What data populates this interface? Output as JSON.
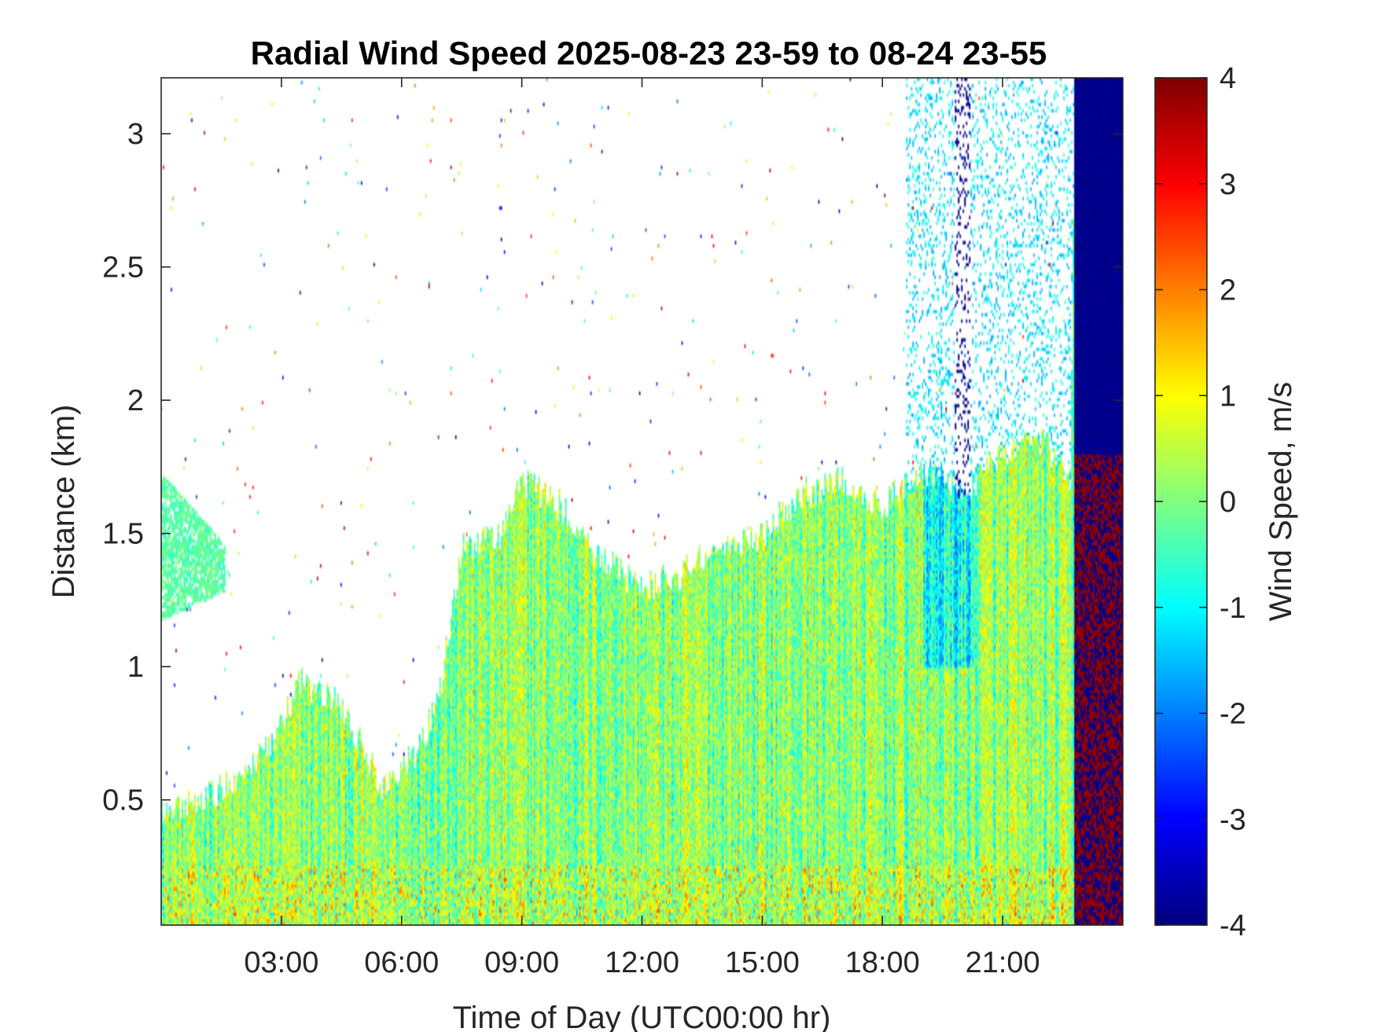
{
  "chart_data": {
    "type": "heatmap",
    "title": "Radial Wind Speed 2025-08-23 23-59 to 08-24 23-55",
    "xlabel": "Time of Day (UTC00:00 hr)",
    "ylabel": "Distance (km)",
    "colorbar_label": "Wind Speed, m/s",
    "colormap": "jet",
    "xlim_hours": [
      0,
      24
    ],
    "ylim_km": [
      0.03,
      3.21
    ],
    "clim": [
      -4,
      4
    ],
    "grid": false,
    "x_ticks": [
      {
        "value": 3,
        "label": "03:00"
      },
      {
        "value": 6,
        "label": "06:00"
      },
      {
        "value": 9,
        "label": "09:00"
      },
      {
        "value": 12,
        "label": "12:00"
      },
      {
        "value": 15,
        "label": "15:00"
      },
      {
        "value": 18,
        "label": "18:00"
      },
      {
        "value": 21,
        "label": "21:00"
      }
    ],
    "y_ticks": [
      {
        "value": 0.5,
        "label": "0.5"
      },
      {
        "value": 1,
        "label": "1"
      },
      {
        "value": 1.5,
        "label": "1.5"
      },
      {
        "value": 2,
        "label": "2"
      },
      {
        "value": 2.5,
        "label": "2.5"
      },
      {
        "value": 3,
        "label": "3"
      }
    ],
    "colorbar_ticks": [
      {
        "value": 4,
        "label": "4"
      },
      {
        "value": 3,
        "label": "3"
      },
      {
        "value": 2,
        "label": "2"
      },
      {
        "value": 1,
        "label": "1"
      },
      {
        "value": 0,
        "label": "0"
      },
      {
        "value": -1,
        "label": "-1"
      },
      {
        "value": -2,
        "label": "-2"
      },
      {
        "value": -3,
        "label": "-3"
      },
      {
        "value": -4,
        "label": "-4"
      }
    ],
    "valid_data_top_km": [
      {
        "time": 0.0,
        "top": 0.45
      },
      {
        "time": 1.0,
        "top": 0.5
      },
      {
        "time": 2.0,
        "top": 0.6
      },
      {
        "time": 3.0,
        "top": 0.78
      },
      {
        "time": 3.5,
        "top": 0.95
      },
      {
        "time": 4.5,
        "top": 0.85
      },
      {
        "time": 5.5,
        "top": 0.55
      },
      {
        "time": 6.5,
        "top": 0.7
      },
      {
        "time": 7.0,
        "top": 0.95
      },
      {
        "time": 7.5,
        "top": 1.45
      },
      {
        "time": 8.5,
        "top": 1.5
      },
      {
        "time": 9.0,
        "top": 1.7
      },
      {
        "time": 10.0,
        "top": 1.6
      },
      {
        "time": 11.0,
        "top": 1.4
      },
      {
        "time": 12.0,
        "top": 1.3
      },
      {
        "time": 13.0,
        "top": 1.35
      },
      {
        "time": 14.0,
        "top": 1.45
      },
      {
        "time": 15.0,
        "top": 1.5
      },
      {
        "time": 16.0,
        "top": 1.65
      },
      {
        "time": 17.0,
        "top": 1.7
      },
      {
        "time": 18.0,
        "top": 1.6
      },
      {
        "time": 19.0,
        "top": 1.75
      },
      {
        "time": 20.0,
        "top": 1.65
      },
      {
        "time": 21.0,
        "top": 1.8
      },
      {
        "time": 22.0,
        "top": 1.85
      },
      {
        "time": 22.7,
        "top": 1.7
      },
      {
        "time": 22.8,
        "top": 3.21
      },
      {
        "time": 24.0,
        "top": 3.21
      }
    ]
  }
}
